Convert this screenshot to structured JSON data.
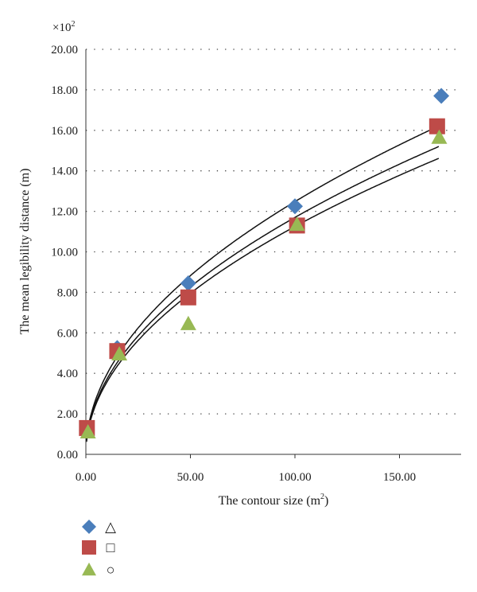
{
  "chart_data": {
    "type": "scatter",
    "multiplier": "×10",
    "multiplier_exp": "2",
    "xlabel": "The contour size (m",
    "xlabel_sup": "2",
    "xlabel_end": ")",
    "ylabel": "The mean legibility distance (m)",
    "xlim": [
      0,
      180
    ],
    "ylim": [
      0,
      20
    ],
    "xticks": [
      0,
      50,
      100,
      150
    ],
    "yticks": [
      0,
      2,
      4,
      6,
      8,
      10,
      12,
      14,
      16,
      18,
      20
    ],
    "grid": "horizontal-dotted",
    "series": [
      {
        "marker": "diamond",
        "legend_symbol": "△",
        "color": "#4a7ebb",
        "points": [
          [
            0.5,
            1.2
          ],
          [
            15,
            5.25
          ],
          [
            49,
            8.45
          ],
          [
            100,
            12.25
          ],
          [
            170,
            17.7
          ]
        ]
      },
      {
        "marker": "square",
        "legend_symbol": "□",
        "color": "#be4b48",
        "points": [
          [
            0.5,
            1.3
          ],
          [
            15,
            5.1
          ],
          [
            49,
            7.75
          ],
          [
            101,
            11.3
          ],
          [
            168,
            16.2
          ]
        ]
      },
      {
        "marker": "triangle",
        "legend_symbol": "○",
        "color": "#98b954",
        "points": [
          [
            1,
            1.1
          ],
          [
            16,
            4.95
          ],
          [
            49,
            6.45
          ],
          [
            101,
            11.35
          ],
          [
            169,
            15.65
          ]
        ]
      }
    ],
    "fit_curves": [
      {
        "a": 1.248,
        "p": 0.5
      },
      {
        "a": 1.17,
        "p": 0.5
      },
      {
        "a": 1.125,
        "p": 0.5
      }
    ]
  }
}
